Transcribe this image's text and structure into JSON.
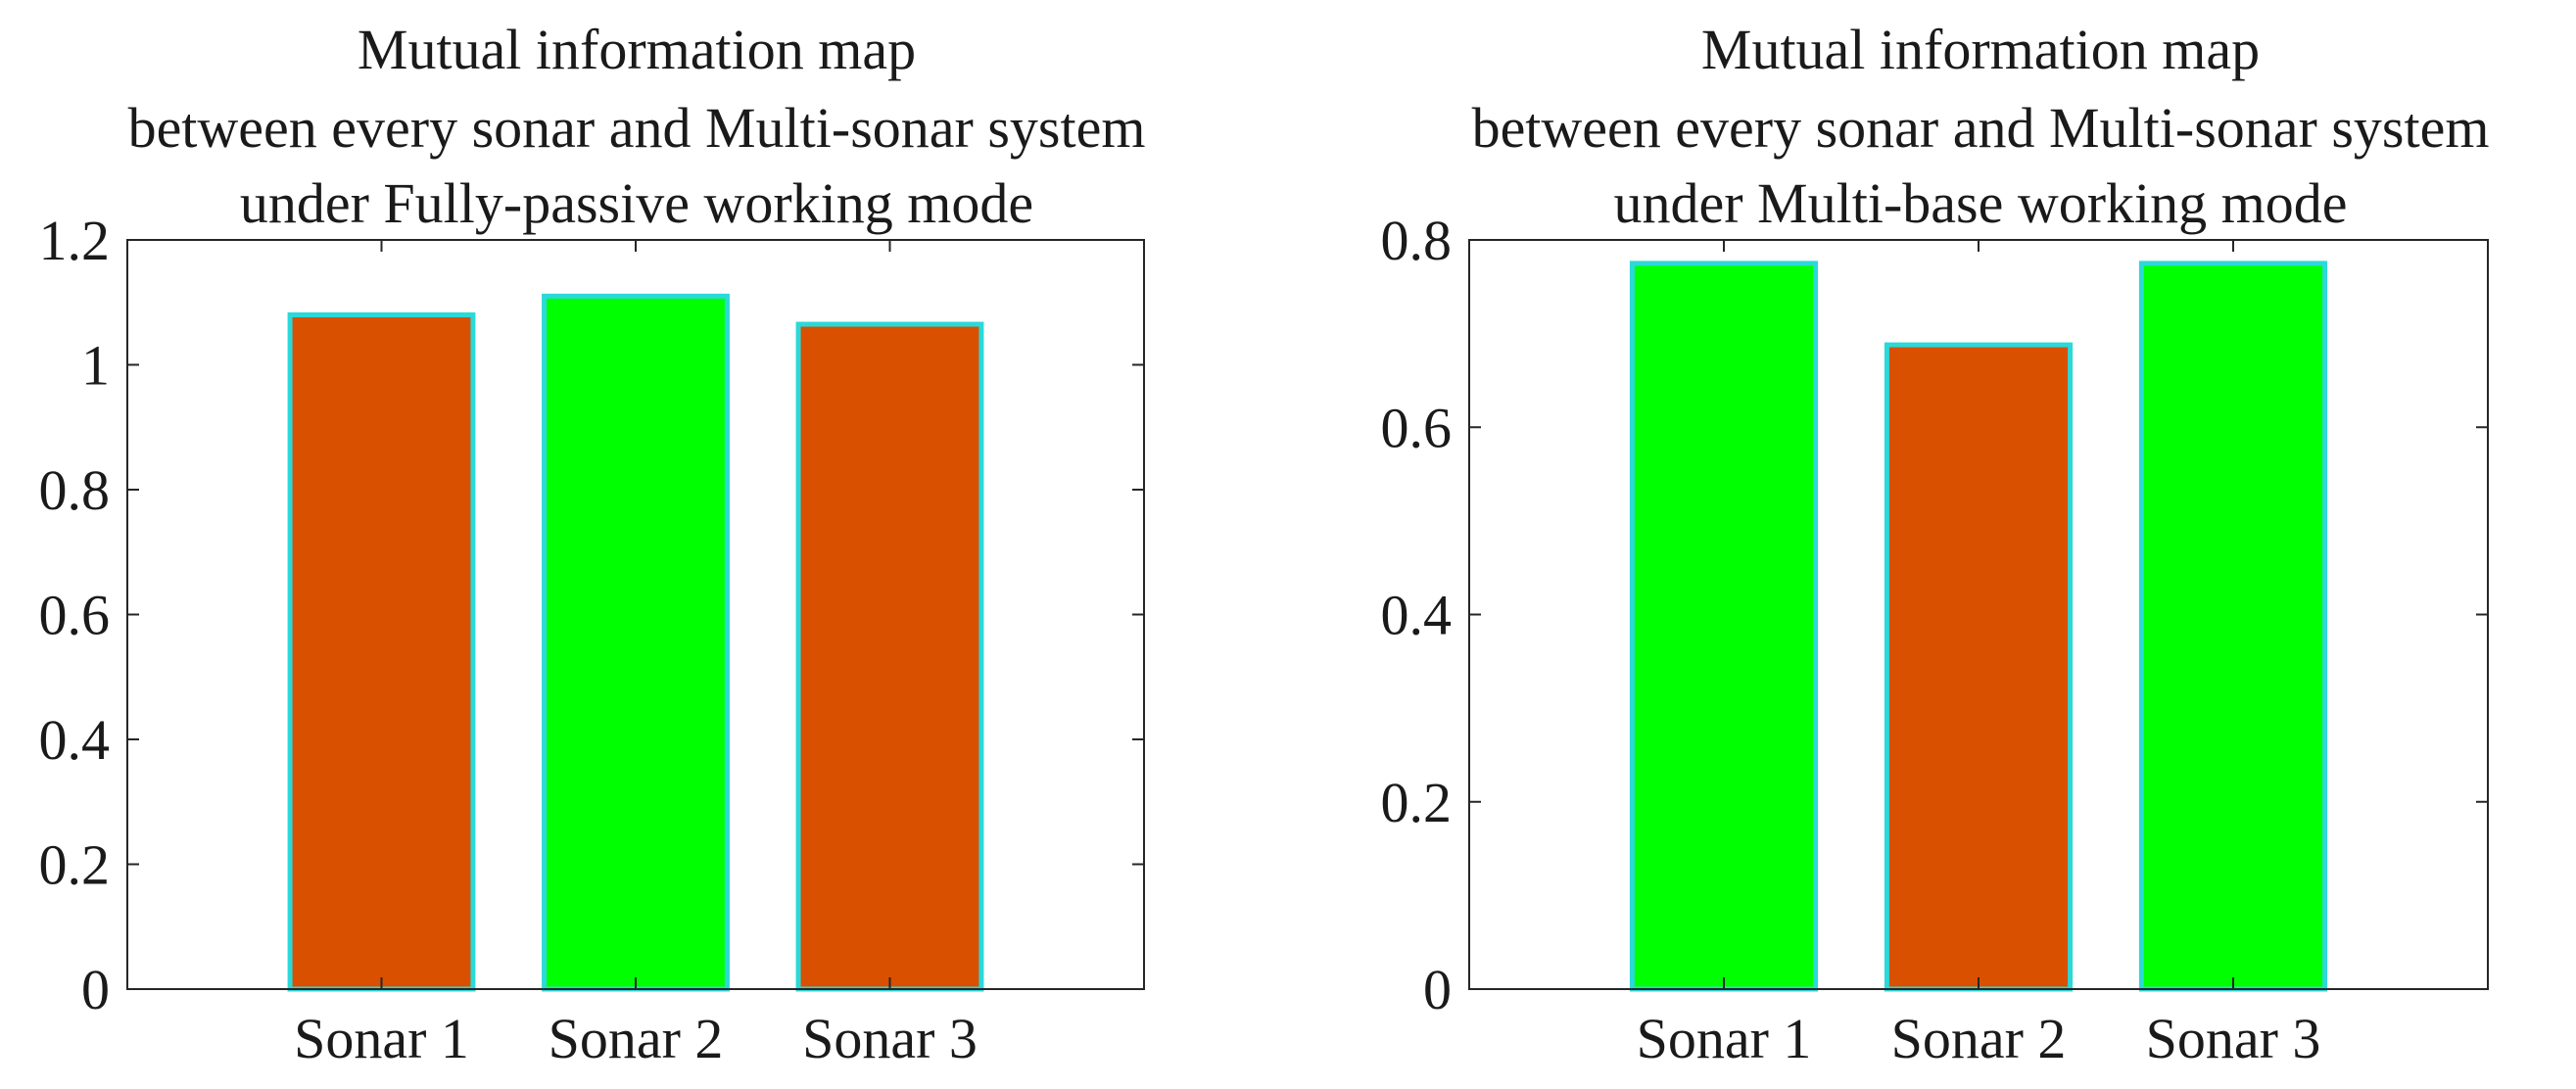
{
  "chart_data": [
    {
      "type": "bar",
      "title": [
        "Mutual information map",
        "between every sonar and Multi-sonar system",
        "under Fully-passive working mode"
      ],
      "categories": [
        "Sonar 1",
        "Sonar 2",
        "Sonar 3"
      ],
      "values": [
        1.08,
        1.11,
        1.065
      ],
      "bar_colors": [
        "#D95000",
        "#00FF00",
        "#D95000"
      ],
      "bar_edge_color": "#2BD9D9",
      "ylim": [
        0,
        1.2
      ],
      "yticks": [
        "0",
        "0.2",
        "0.4",
        "0.6",
        "0.8",
        "1",
        "1.2"
      ],
      "xlabel": "",
      "ylabel": "",
      "grid": false,
      "legend": "none"
    },
    {
      "type": "bar",
      "title": [
        "Mutual information map",
        "between every sonar and Multi-sonar system",
        "under Multi-base working mode"
      ],
      "categories": [
        "Sonar 1",
        "Sonar 2",
        "Sonar 3"
      ],
      "values": [
        0.775,
        0.688,
        0.775
      ],
      "bar_colors": [
        "#00FF00",
        "#D95000",
        "#00FF00"
      ],
      "bar_edge_color": "#2BD9D9",
      "ylim": [
        0,
        0.8
      ],
      "yticks": [
        "0",
        "0.2",
        "0.4",
        "0.6",
        "0.8"
      ],
      "xlabel": "",
      "ylabel": "",
      "grid": false,
      "legend": "none"
    }
  ]
}
